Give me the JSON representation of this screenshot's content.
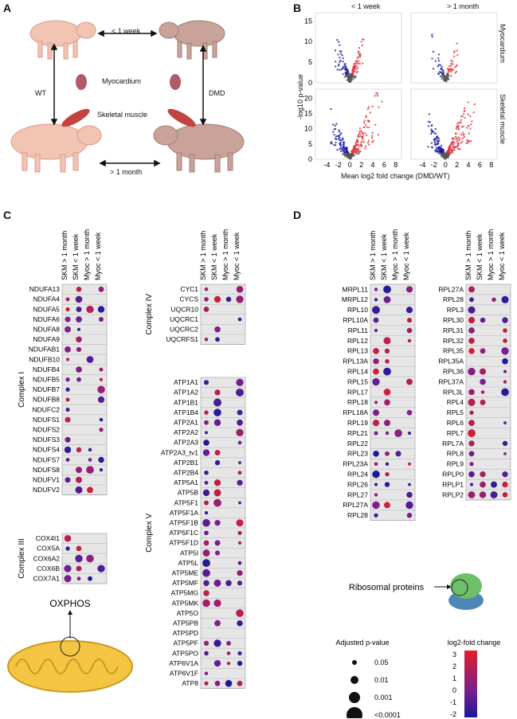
{
  "panels": {
    "a": "A",
    "b": "B",
    "c": "C",
    "d": "D"
  },
  "panel_a": {
    "top_period": "< 1 week",
    "bottom_period": "> 1 month",
    "left_group": "WT",
    "right_group": "DMD",
    "tissue_1": "Myocardium",
    "tissue_2": "Skeletal muscle"
  },
  "panel_b": {
    "col_titles": [
      "< 1 week",
      "> 1 month"
    ],
    "row_titles": [
      "Myocardium",
      "Skeletal muscle"
    ],
    "ylabel": "-log10 p-value",
    "xlabel": "Mean log2 fold change (DMD/WT)",
    "top_yticks": [
      "15",
      "10",
      "5",
      "0"
    ],
    "bottom_yticks": [
      "20",
      "15",
      "10",
      "5",
      "0"
    ],
    "xticks": [
      "-4",
      "-2",
      "0",
      "2",
      "4",
      "6",
      "8"
    ]
  },
  "columns": [
    "SKM > 1 month",
    "SKM < 1 week",
    "Myoc > 1 month",
    "Myoc < 1 week"
  ],
  "colors": {
    "neg": "#1a1a9a",
    "mid": "#7a1f8f",
    "pos": "#e21f26",
    "cell": "#e6e6e6"
  },
  "panel_c": {
    "complexes": [
      "Complex I",
      "Complex III",
      "Complex IV",
      "Complex V"
    ],
    "complex_I": [
      "NDUFA13",
      "NDUFA4",
      "NDUFA5",
      "NDUFA6",
      "NDUFA8",
      "NDUFA9",
      "NDUFAB1",
      "NDUFB10",
      "NDUFB4",
      "NDUFB5",
      "NDUFB7",
      "NDUFB8",
      "NDUFC2",
      "NDUFS1",
      "NDUFS2",
      "NDUFS3",
      "NDUFS4",
      "NDUFS7",
      "NDUFS8",
      "NDUFV1",
      "NDUFV2"
    ],
    "complex_III": [
      "COX4I1",
      "COX5A",
      "COX6A2",
      "COX6B",
      "COX7A1"
    ],
    "complex_IV": [
      "CYC1",
      "CYCS",
      "UQCR10",
      "UQCRC1",
      "UQCRC2",
      "UQCRFS1"
    ],
    "complex_V": [
      "ATP1A1",
      "ATP1A2",
      "ATP1B1",
      "ATP1B4",
      "ATP2A1",
      "ATP2A2",
      "ATP2A3",
      "ATP2A3_tv1",
      "ATP2B1",
      "ATP2B4",
      "ATP5A1",
      "ATP5B",
      "ATP5F1",
      "ATP5F1A",
      "ATP5F1B",
      "ATP5F1C",
      "ATP5F1D",
      "ATP5I",
      "ATP5L",
      "ATP5ME",
      "ATP5MF",
      "ATP5MG",
      "ATP5MK",
      "ATP5O",
      "ATP5PB",
      "ATP5PD",
      "ATP5PF",
      "ATP5PO",
      "ATP6V1A",
      "ATP6V1F",
      "ATP8"
    ],
    "organelle": "OXPHOS"
  },
  "panel_d": {
    "left": [
      "MRPL11",
      "MRPL12",
      "RPL10",
      "RPL10A",
      "RPL11",
      "RPL12",
      "RPL13",
      "RPL13A",
      "RPL14",
      "RPL15",
      "RPL17",
      "RPL18",
      "RPL18A",
      "RPL19",
      "RPL21",
      "RPL22",
      "RPL23",
      "RPL23A",
      "RPL24",
      "RPL26",
      "RPL27",
      "RPL27A",
      "RPL28"
    ],
    "right": [
      "RPL27A",
      "RPL28",
      "RPL3",
      "RPL30",
      "RPL31",
      "RPL32",
      "RPL35",
      "RPL35A",
      "RPL36",
      "RPL37A",
      "RPL3L",
      "RPL4",
      "RPL5",
      "RPL6",
      "RPL7",
      "RPL7A",
      "RPL8",
      "RPL9",
      "RPLP0",
      "RPLP1",
      "RPLP2"
    ],
    "organelle": "Ribosomal proteins"
  },
  "legend": {
    "size_title": "Adjusted  p-value",
    "size_levels": [
      "0.05",
      "0.01",
      "0.001",
      "<0.0001"
    ],
    "color_title": "log2-fold change",
    "color_ticks": [
      "3",
      "2",
      "1",
      "0",
      "-1",
      "-2"
    ]
  },
  "chart_data": [
    {
      "type": "scatter",
      "title": "Myocardium < 1 week",
      "xlabel": "Mean log2 fold change (DMD/WT)",
      "ylabel": "-log10 p-value",
      "xlim": [
        -6,
        9
      ],
      "ylim": [
        0,
        17
      ]
    },
    {
      "type": "scatter",
      "title": "Myocardium > 1 month",
      "xlim": [
        -6,
        9
      ],
      "ylim": [
        0,
        17
      ]
    },
    {
      "type": "scatter",
      "title": "Skeletal muscle < 1 week",
      "xlim": [
        -6,
        9
      ],
      "ylim": [
        0,
        23
      ]
    },
    {
      "type": "scatter",
      "title": "Skeletal muscle > 1 month",
      "xlim": [
        -6,
        9
      ],
      "ylim": [
        0,
        23
      ]
    }
  ]
}
